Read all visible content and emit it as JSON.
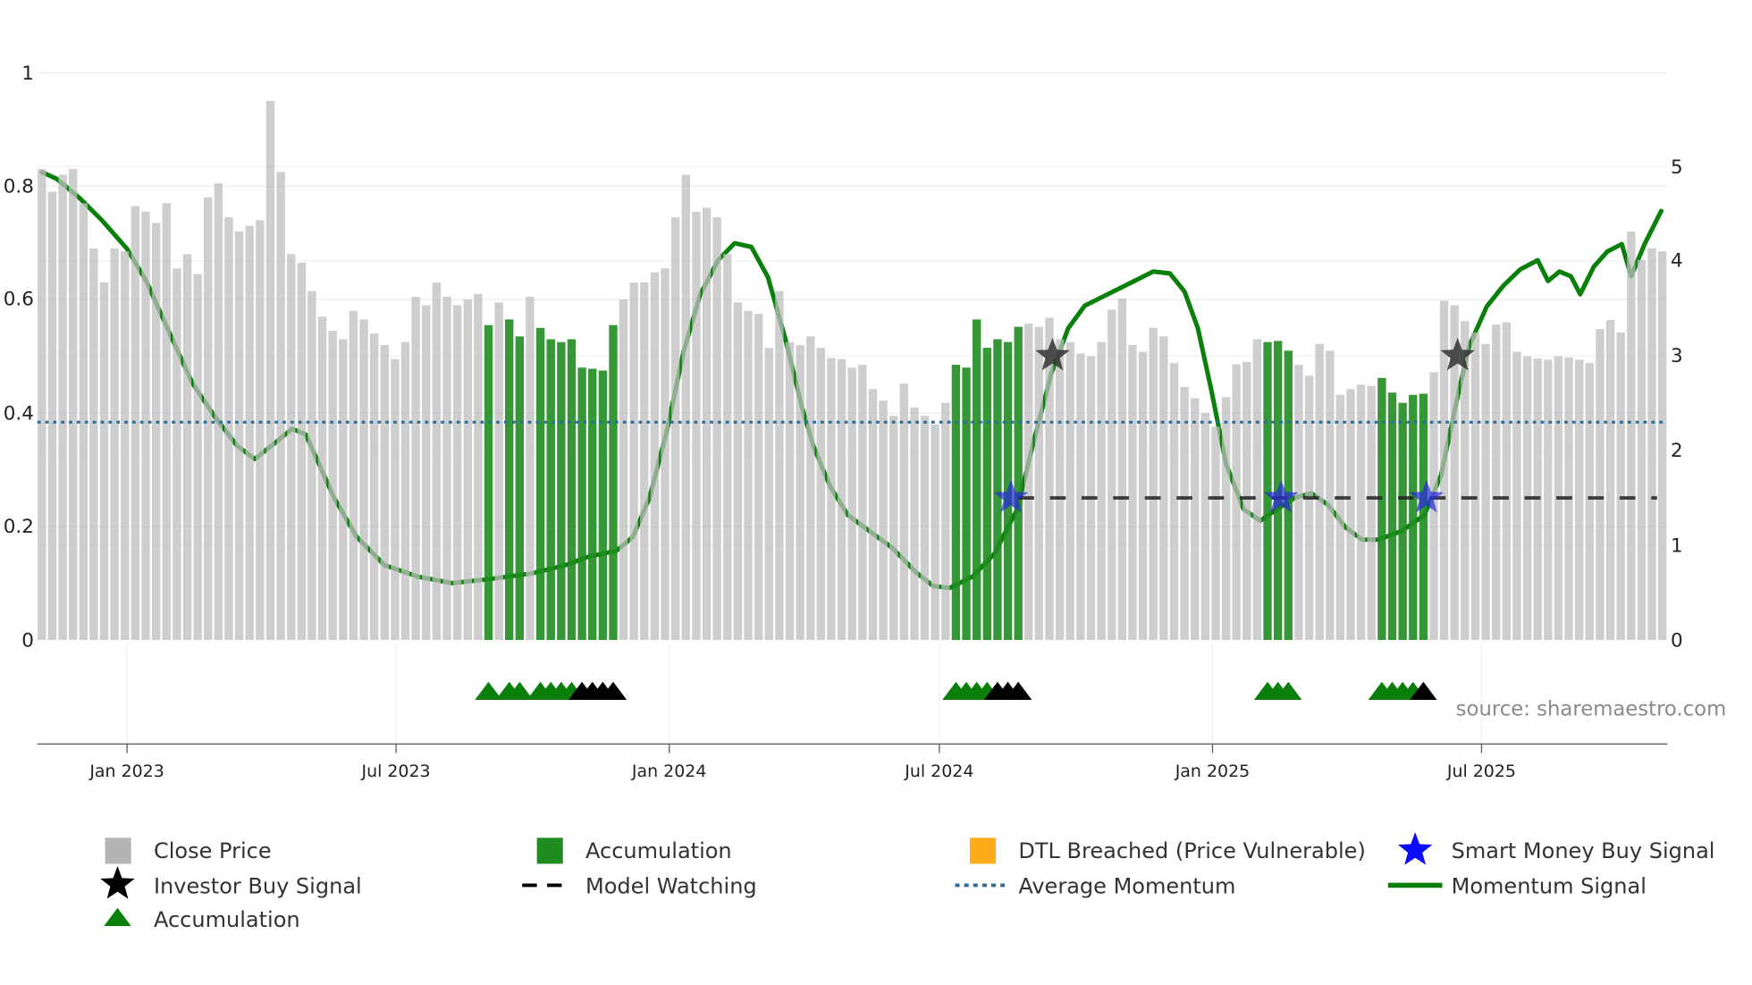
{
  "chart_data": {
    "type": "bar",
    "title": "",
    "source": "source: sharemaestro.com",
    "x_unit": "week index",
    "left_axis": {
      "ylim": [
        0,
        1
      ],
      "ticks": [
        "0",
        "0.2",
        "0.4",
        "0.6",
        "0.8",
        "1"
      ]
    },
    "right_axis": {
      "ylim": [
        0,
        5
      ],
      "ticks": [
        "0",
        "1",
        "2",
        "3",
        "4",
        "5"
      ]
    },
    "x_ticks": [
      {
        "label": "Jan 2023",
        "index": 8.2
      },
      {
        "label": "Jul 2023",
        "index": 34.1
      },
      {
        "label": "Jan 2024",
        "index": 60.4
      },
      {
        "label": "Jul 2024",
        "index": 86.4
      },
      {
        "label": "Jan 2025",
        "index": 112.7
      },
      {
        "label": "Jul 2025",
        "index": 138.6
      }
    ],
    "close_price": [
      0.83,
      0.79,
      0.82,
      0.83,
      0.77,
      0.69,
      0.63,
      0.69,
      0.685,
      0.765,
      0.755,
      0.735,
      0.77,
      0.655,
      0.68,
      0.645,
      0.78,
      0.805,
      0.745,
      0.72,
      0.73,
      0.74,
      0.95,
      0.825,
      0.68,
      0.665,
      0.615,
      0.57,
      0.545,
      0.53,
      0.58,
      0.565,
      0.54,
      0.52,
      0.495,
      0.525,
      0.605,
      0.59,
      0.63,
      0.605,
      0.59,
      0.6,
      0.61,
      0.555,
      0.595,
      0.565,
      0.535,
      0.605,
      0.55,
      0.53,
      0.525,
      0.53,
      0.48,
      0.478,
      0.475,
      0.555,
      0.6,
      0.63,
      0.63,
      0.648,
      0.655,
      0.745,
      0.82,
      0.755,
      0.762,
      0.745,
      0.68,
      0.595,
      0.58,
      0.575,
      0.515,
      0.615,
      0.525,
      0.52,
      0.535,
      0.515,
      0.497,
      0.495,
      0.48,
      0.485,
      0.442,
      0.422,
      0.395,
      0.452,
      0.41,
      0.395,
      0.38,
      0.418,
      0.485,
      0.48,
      0.565,
      0.515,
      0.53,
      0.525,
      0.552,
      0.558,
      0.552,
      0.568,
      0.53,
      0.525,
      0.505,
      0.5,
      0.525,
      0.582,
      0.602,
      0.52,
      0.508,
      0.55,
      0.535,
      0.488,
      0.446,
      0.426,
      0.4,
      0.376,
      0.428,
      0.486,
      0.49,
      0.53,
      0.525,
      0.527,
      0.51,
      0.485,
      0.466,
      0.522,
      0.51,
      0.432,
      0.442,
      0.45,
      0.448,
      0.462,
      0.436,
      0.418,
      0.432,
      0.434,
      0.472,
      0.598,
      0.59,
      0.562,
      0.542,
      0.522,
      0.556,
      0.56,
      0.508,
      0.5,
      0.496,
      0.494,
      0.5,
      0.498,
      0.494,
      0.488,
      0.548,
      0.564,
      0.542,
      0.72,
      0.67,
      0.69,
      0.685
    ],
    "accumulation_bars": [
      43,
      45,
      46,
      48,
      49,
      50,
      51,
      52,
      53,
      54,
      55,
      88,
      89,
      90,
      91,
      92,
      93,
      94,
      118,
      119,
      120,
      129,
      130,
      131,
      132,
      133
    ],
    "momentum_signal": [
      [
        0,
        4.94
      ],
      [
        1.4,
        4.87
      ],
      [
        3.6,
        4.67
      ],
      [
        5.8,
        4.43
      ],
      [
        8.2,
        4.13
      ],
      [
        10.1,
        3.78
      ],
      [
        12.3,
        3.24
      ],
      [
        14.5,
        2.71
      ],
      [
        16.7,
        2.35
      ],
      [
        18.8,
        2.05
      ],
      [
        20.5,
        1.91
      ],
      [
        22.1,
        2.05
      ],
      [
        24.1,
        2.23
      ],
      [
        25.4,
        2.17
      ],
      [
        26.4,
        1.93
      ],
      [
        28.1,
        1.51
      ],
      [
        30.3,
        1.09
      ],
      [
        33.0,
        0.79
      ],
      [
        36.2,
        0.67
      ],
      [
        39.5,
        0.6
      ],
      [
        42.8,
        0.64
      ],
      [
        47.1,
        0.7
      ],
      [
        50.4,
        0.79
      ],
      [
        52.6,
        0.88
      ],
      [
        55.3,
        0.94
      ],
      [
        56.9,
        1.09
      ],
      [
        58.5,
        1.5
      ],
      [
        60.2,
        2.22
      ],
      [
        61.8,
        3.05
      ],
      [
        63.4,
        3.65
      ],
      [
        65.1,
        4.01
      ],
      [
        66.7,
        4.19
      ],
      [
        68.3,
        4.15
      ],
      [
        69.9,
        3.83
      ],
      [
        71.6,
        3.17
      ],
      [
        73.2,
        2.45
      ],
      [
        74.3,
        2.04
      ],
      [
        75.9,
        1.62
      ],
      [
        77.6,
        1.32
      ],
      [
        79.8,
        1.14
      ],
      [
        81.9,
        0.97
      ],
      [
        84.1,
        0.72
      ],
      [
        85.8,
        0.57
      ],
      [
        87.4,
        0.55
      ],
      [
        89.6,
        0.67
      ],
      [
        91.7,
        0.91
      ],
      [
        93.9,
        1.38
      ],
      [
        95.5,
        2.1
      ],
      [
        97.2,
        2.82
      ],
      [
        98.8,
        3.29
      ],
      [
        100.4,
        3.53
      ],
      [
        102.6,
        3.65
      ],
      [
        104.8,
        3.77
      ],
      [
        107.0,
        3.89
      ],
      [
        108.6,
        3.87
      ],
      [
        110.0,
        3.68
      ],
      [
        111.3,
        3.29
      ],
      [
        112.6,
        2.63
      ],
      [
        114.0,
        1.86
      ],
      [
        115.7,
        1.38
      ],
      [
        117.3,
        1.26
      ],
      [
        118.9,
        1.38
      ],
      [
        120.6,
        1.5
      ],
      [
        122.2,
        1.55
      ],
      [
        123.8,
        1.43
      ],
      [
        125.5,
        1.19
      ],
      [
        127.1,
        1.06
      ],
      [
        128.7,
        1.06
      ],
      [
        130.9,
        1.15
      ],
      [
        133.1,
        1.32
      ],
      [
        134.7,
        1.74
      ],
      [
        136.3,
        2.57
      ],
      [
        137.4,
        3.1
      ],
      [
        139.1,
        3.52
      ],
      [
        140.7,
        3.74
      ],
      [
        142.3,
        3.91
      ],
      [
        144.0,
        4.01
      ],
      [
        145.0,
        3.79
      ],
      [
        146.1,
        3.89
      ],
      [
        147.2,
        3.84
      ],
      [
        148.1,
        3.65
      ],
      [
        149.4,
        3.94
      ],
      [
        150.7,
        4.1
      ],
      [
        152.1,
        4.18
      ],
      [
        153.0,
        3.84
      ],
      [
        154.3,
        4.18
      ],
      [
        155.9,
        4.53
      ]
    ],
    "average_momentum": 2.3,
    "model_watching": {
      "value": 1.5,
      "from_index": 94,
      "to_index": 155.5
    },
    "investor_buy_signals": [
      [
        97.3,
        3.0
      ],
      [
        136.3,
        3.0
      ]
    ],
    "smart_money_buy_signals": [
      [
        93.3,
        1.5
      ],
      [
        119.3,
        1.5
      ],
      [
        133.3,
        1.5
      ]
    ],
    "accumulation_triangles": {
      "green": [
        43,
        45,
        46,
        48,
        49,
        50,
        51,
        88,
        89,
        90,
        91,
        118,
        119,
        120,
        129,
        130,
        131,
        132
      ],
      "black": [
        52,
        53,
        54,
        55,
        92,
        93,
        94,
        133
      ]
    },
    "legend": [
      {
        "label": "Close Price",
        "symbol": "square",
        "color": "#b4b4b4"
      },
      {
        "label": "Accumulation",
        "symbol": "square",
        "color": "#1f8c1f"
      },
      {
        "label": "DTL Breached (Price Vulnerable)",
        "symbol": "square",
        "color": "#ffab1a"
      },
      {
        "label": "Smart Money Buy Signal",
        "symbol": "star",
        "color": "#0a0aff"
      },
      {
        "label": "Investor Buy Signal",
        "symbol": "star",
        "color": "#000000"
      },
      {
        "label": "Model Watching",
        "symbol": "dash",
        "color": "#000000"
      },
      {
        "label": "Average Momentum",
        "symbol": "dot",
        "color": "#2a6e9e"
      },
      {
        "label": "Momentum Signal",
        "symbol": "line",
        "color": "#0a800a"
      },
      {
        "label": "Accumulation",
        "symbol": "triangle",
        "color": "#0a800a"
      }
    ],
    "legend_placement": "bottom"
  }
}
